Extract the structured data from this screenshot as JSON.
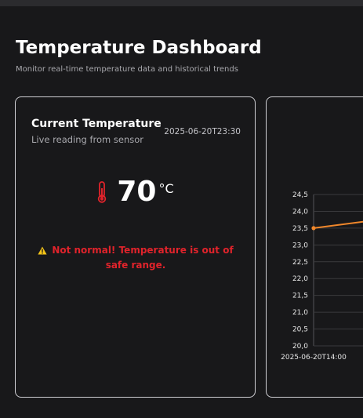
{
  "page": {
    "title": "Temperature Dashboard",
    "subtitle": "Monitor real-time temperature data and historical trends"
  },
  "current_card": {
    "title": "Current Temperature",
    "subtitle": "Live reading from sensor",
    "timestamp": "2025-06-20T23:30",
    "value": "70",
    "unit": "°C",
    "thermometer_icon": "thermometer-icon",
    "warning_icon": "warning-icon",
    "warning_text": "Not normal! Temperature is out of safe range.",
    "warning_color": "#e0232b"
  },
  "chart_data": {
    "type": "line",
    "y_ticks": [
      "20,0",
      "20,5",
      "21,0",
      "21,5",
      "22,0",
      "22,5",
      "23,0",
      "23,5",
      "24,0",
      "24,5"
    ],
    "ylim": [
      20.0,
      24.5
    ],
    "x_tick_labels": [
      "2025-06-20T14:00"
    ],
    "series": [
      {
        "x": [
          "2025-06-20T14:00"
        ],
        "values": [
          23.5
        ],
        "color": "#f0872b"
      }
    ],
    "grid": true
  }
}
